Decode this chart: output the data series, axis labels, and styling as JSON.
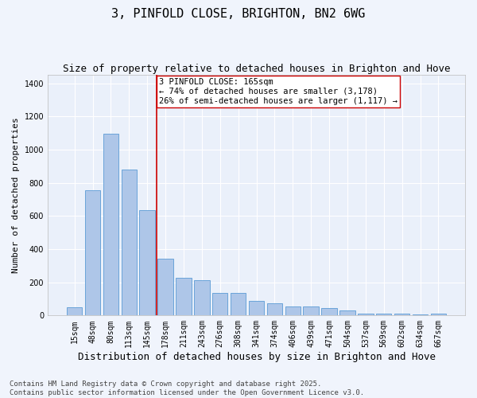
{
  "title": "3, PINFOLD CLOSE, BRIGHTON, BN2 6WG",
  "subtitle": "Size of property relative to detached houses in Brighton and Hove",
  "xlabel": "Distribution of detached houses by size in Brighton and Hove",
  "ylabel": "Number of detached properties",
  "categories": [
    "15sqm",
    "48sqm",
    "80sqm",
    "113sqm",
    "145sqm",
    "178sqm",
    "211sqm",
    "243sqm",
    "276sqm",
    "308sqm",
    "341sqm",
    "374sqm",
    "406sqm",
    "439sqm",
    "471sqm",
    "504sqm",
    "537sqm",
    "569sqm",
    "602sqm",
    "634sqm",
    "667sqm"
  ],
  "values": [
    50,
    755,
    1095,
    880,
    635,
    340,
    225,
    215,
    135,
    135,
    90,
    75,
    55,
    55,
    45,
    30,
    10,
    10,
    10,
    5,
    10
  ],
  "bar_color": "#AEC6E8",
  "bar_edge_color": "#5B9BD5",
  "background_color": "#EAF0FA",
  "fig_background_color": "#F0F4FC",
  "grid_color": "#FFFFFF",
  "vline_index": 4,
  "vline_color": "#CC0000",
  "annotation_text": "3 PINFOLD CLOSE: 165sqm\n← 74% of detached houses are smaller (3,178)\n26% of semi-detached houses are larger (1,117) →",
  "annotation_box_color": "#CC0000",
  "ylim": [
    0,
    1450
  ],
  "yticks": [
    0,
    200,
    400,
    600,
    800,
    1000,
    1200,
    1400
  ],
  "footer_text": "Contains HM Land Registry data © Crown copyright and database right 2025.\nContains public sector information licensed under the Open Government Licence v3.0.",
  "title_fontsize": 11,
  "subtitle_fontsize": 9,
  "xlabel_fontsize": 9,
  "ylabel_fontsize": 8,
  "tick_fontsize": 7,
  "annotation_fontsize": 7.5,
  "footer_fontsize": 6.5
}
